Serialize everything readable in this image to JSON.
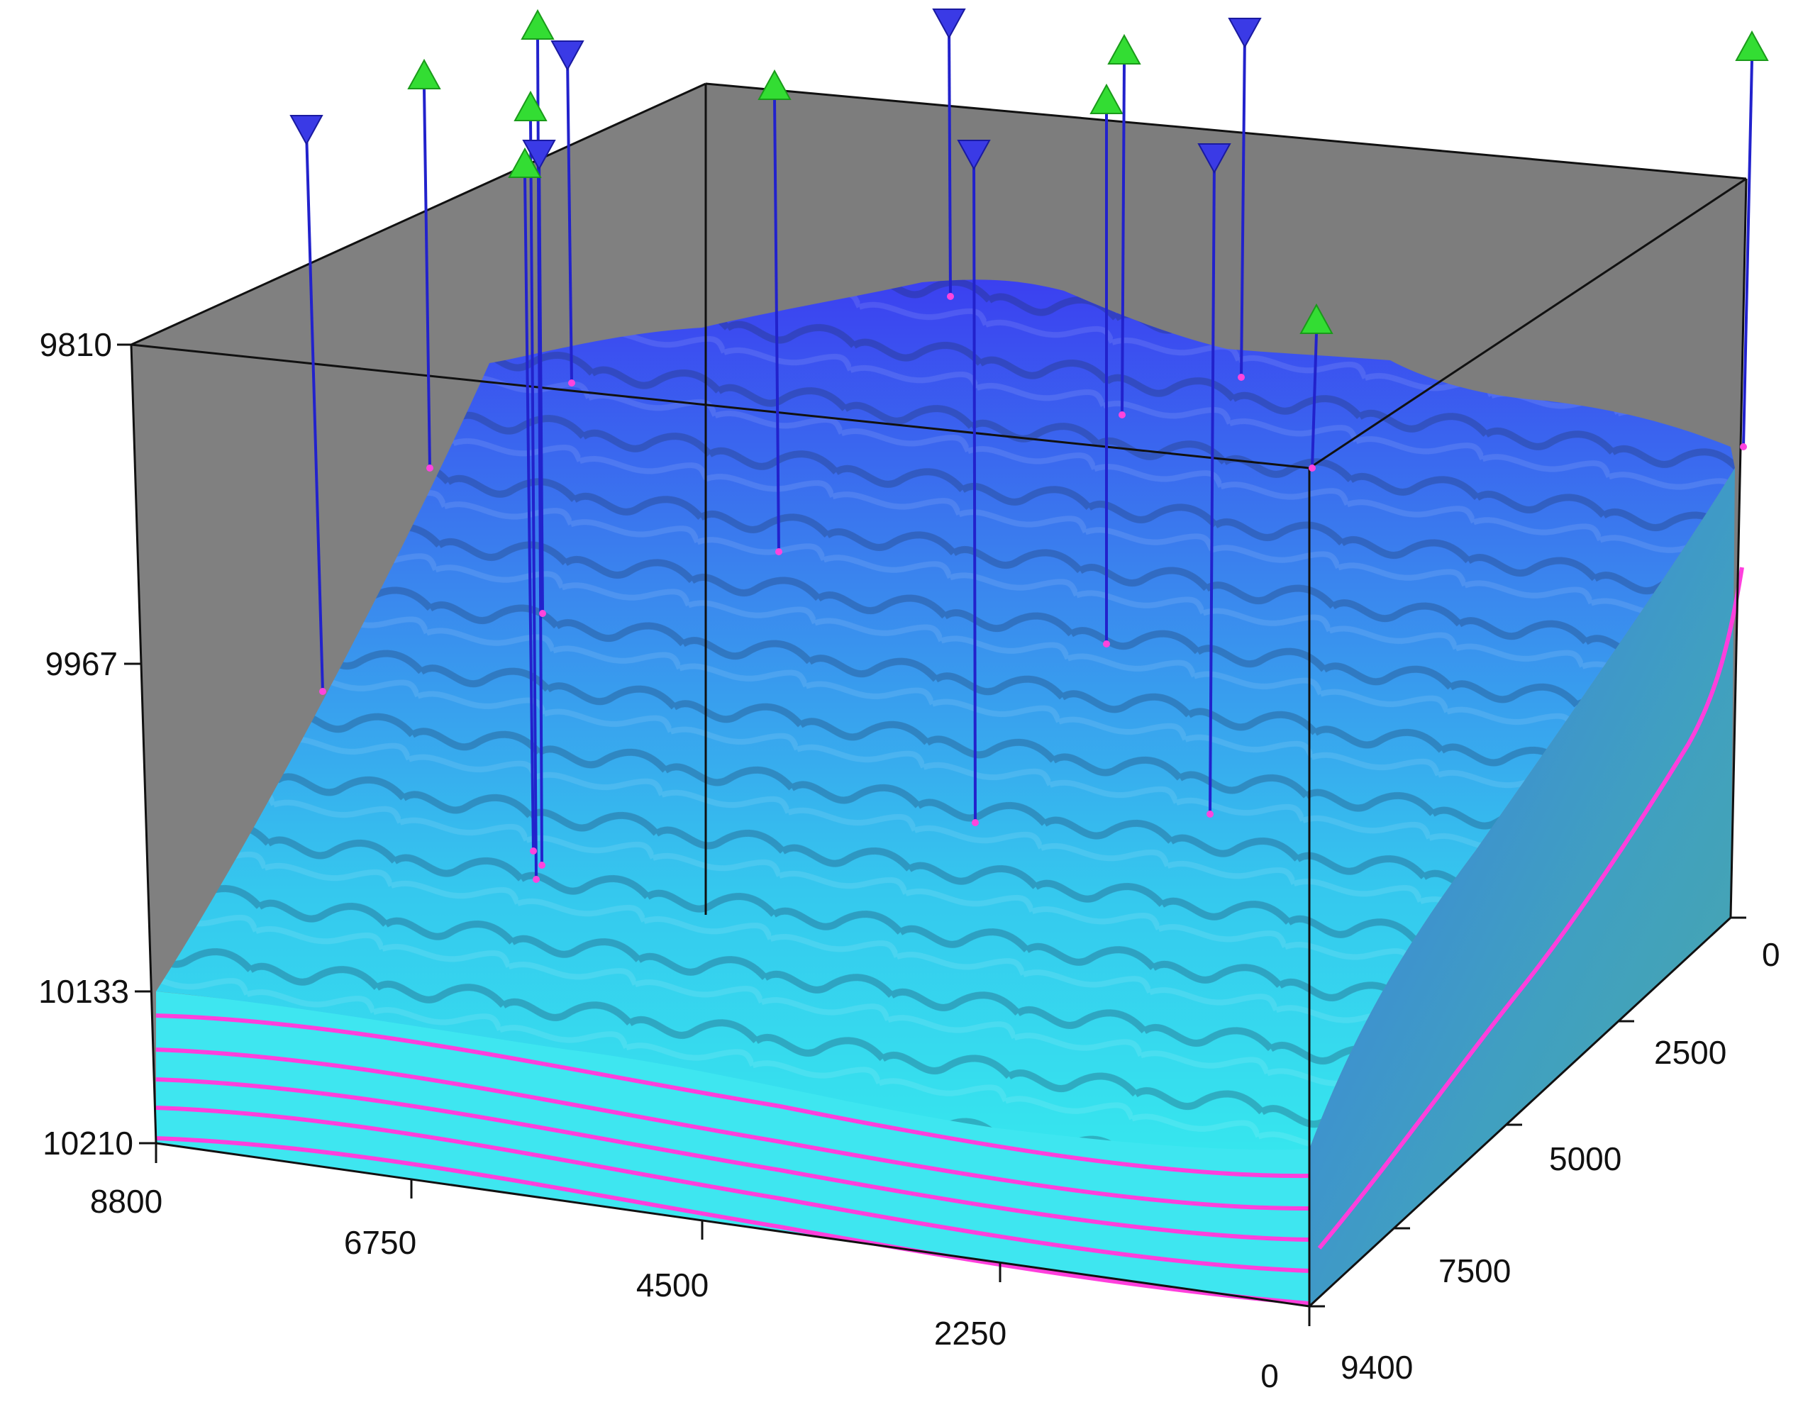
{
  "chart_data": {
    "type": "3d-surface",
    "axes": {
      "depth": {
        "ticks": [
          "9810",
          "9967",
          "10133",
          "10210"
        ],
        "range": [
          9810,
          10210
        ],
        "inverted": true
      },
      "front": {
        "ticks": [
          "8800",
          "6750",
          "4500",
          "2250",
          "0"
        ],
        "range": [
          8800,
          0
        ]
      },
      "side": {
        "ticks": [
          "0",
          "2500",
          "5000",
          "7500",
          "9400"
        ],
        "range": [
          0,
          9400
        ]
      }
    },
    "wells": {
      "injector_color": "#3a3ae6",
      "producer_color": "#33dd33",
      "injectors_count_markers": "down-triangle",
      "producers_count_markers": "up-triangle"
    },
    "colors": {
      "background_walls": "#808080",
      "surface_top": "#3f48f0",
      "surface_bottom": "#38e8f0",
      "layer_lines": "#ff44dd",
      "well_line": "#2222cc"
    },
    "layers": 5
  }
}
